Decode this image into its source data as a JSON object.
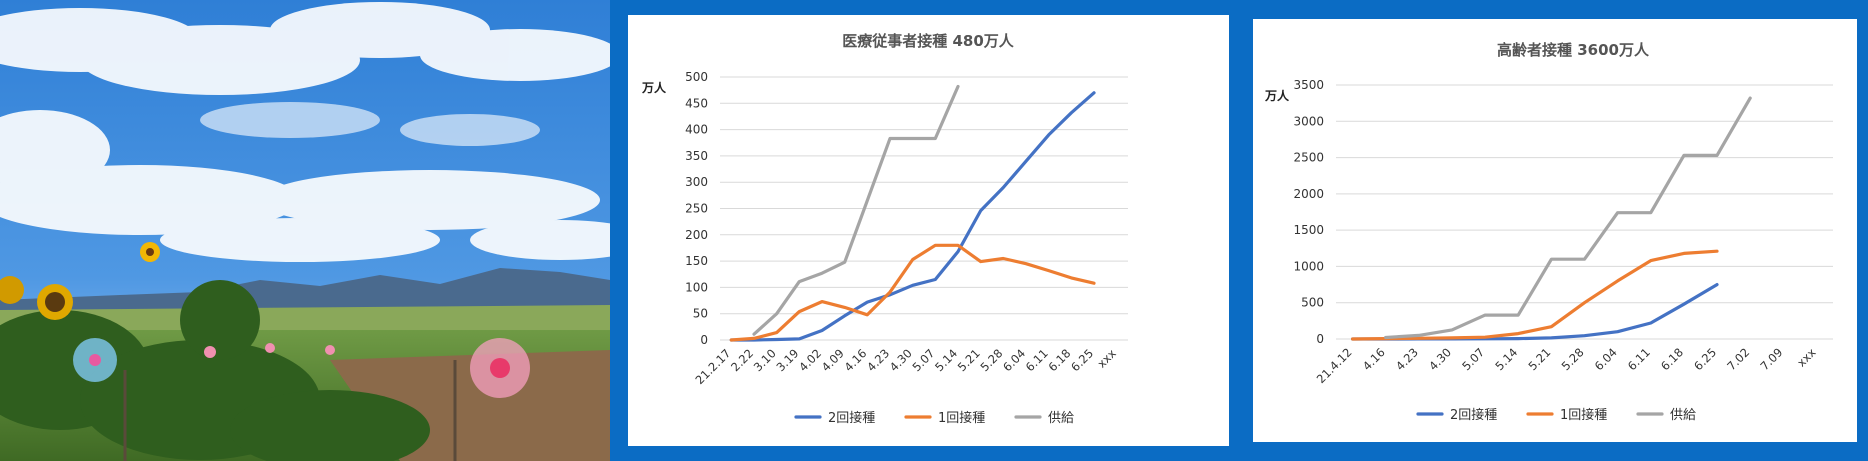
{
  "colors": {
    "frame": "#0b6cc4",
    "series_2nd": "#4472c4",
    "series_1st": "#ed7d31",
    "series_supply": "#a5a5a5"
  },
  "chart_data": [
    {
      "type": "line",
      "title": "医療従事者接種 480万人",
      "ylabel": "万人",
      "xlabel": "",
      "ylim": [
        0,
        500
      ],
      "yticks": [
        0,
        50,
        100,
        150,
        200,
        250,
        300,
        350,
        400,
        450,
        500
      ],
      "grid": true,
      "legend": "bottom",
      "categories": [
        "21.2.17",
        "2.22",
        "3.10",
        "3.19",
        "4.02",
        "4.09",
        "4.16",
        "4.23",
        "4.30",
        "5.07",
        "5.14",
        "5.21",
        "5.28",
        "6.04",
        "6.11",
        "6.18",
        "6.25",
        "xxx"
      ],
      "series": [
        {
          "name": "2回接種",
          "values": [
            0,
            0,
            1,
            2,
            18,
            46,
            72,
            86,
            104,
            115,
            168,
            246,
            290,
            340,
            390,
            432,
            470,
            null
          ]
        },
        {
          "name": "1回接種",
          "values": [
            0,
            3,
            14,
            54,
            73,
            62,
            48,
            91,
            153,
            180,
            180,
            149,
            155,
            145,
            132,
            118,
            108,
            null
          ]
        },
        {
          "name": "供給",
          "values": [
            null,
            11,
            50,
            111,
            127,
            148,
            265,
            383,
            383,
            383,
            482,
            null,
            null,
            null,
            null,
            null,
            null,
            null
          ]
        }
      ]
    },
    {
      "type": "line",
      "title": "高齢者接種 3600万人",
      "ylabel": "万人",
      "xlabel": "",
      "ylim": [
        0,
        3500
      ],
      "yticks": [
        0,
        500,
        1000,
        1500,
        2000,
        2500,
        3000,
        3500
      ],
      "grid": true,
      "legend": "bottom",
      "categories": [
        "21.4.12",
        "4.16",
        "4.23",
        "4.30",
        "5.07",
        "5.14",
        "5.21",
        "5.28",
        "6.04",
        "6.11",
        "6.18",
        "6.25",
        "7.02",
        "7.09",
        "xxx"
      ],
      "series": [
        {
          "name": "2回接種",
          "values": [
            0,
            0,
            1,
            2,
            3,
            5,
            15,
            45,
            100,
            220,
            480,
            750,
            null,
            null,
            null
          ]
        },
        {
          "name": "1回接種",
          "values": [
            0,
            5,
            10,
            15,
            25,
            75,
            170,
            500,
            800,
            1080,
            1180,
            1210,
            null,
            null,
            null
          ]
        },
        {
          "name": "供給",
          "values": [
            null,
            20,
            50,
            125,
            330,
            330,
            1100,
            1100,
            1740,
            1740,
            2530,
            2530,
            3320,
            null,
            null
          ]
        }
      ]
    }
  ]
}
